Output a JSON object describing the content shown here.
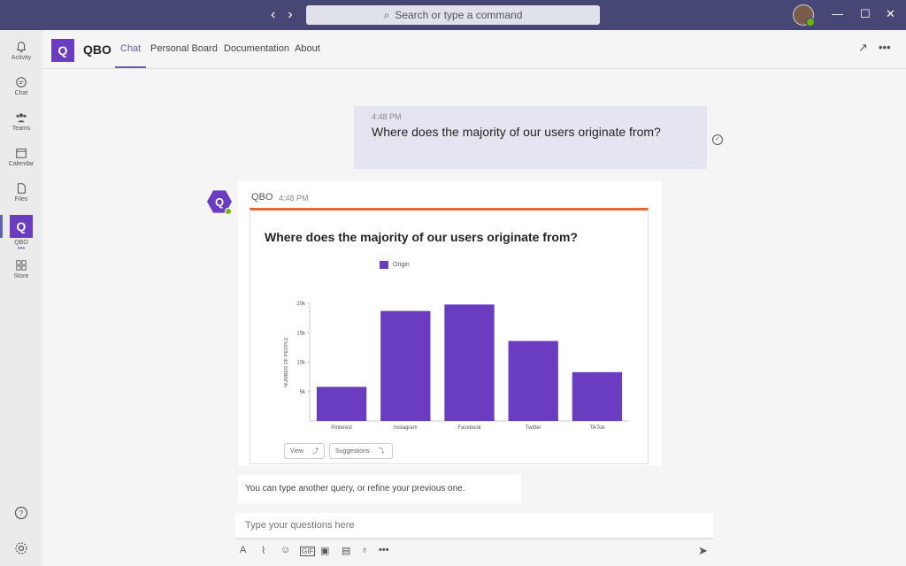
{
  "titlebar": {
    "search_placeholder": "Search or type a command"
  },
  "rail": {
    "items": [
      {
        "label": "Activity"
      },
      {
        "label": "Chat"
      },
      {
        "label": "Teams"
      },
      {
        "label": "Calendar"
      },
      {
        "label": "Files"
      },
      {
        "label": "QBO"
      },
      {
        "label": "Store"
      }
    ]
  },
  "header": {
    "app_name": "QBO",
    "tabs": [
      {
        "label": "Chat"
      },
      {
        "label": "Personal Board"
      },
      {
        "label": "Documentation"
      },
      {
        "label": "About"
      }
    ]
  },
  "messages": {
    "user": {
      "time": "4:48 PM",
      "text": "Where does the majority of our users originate from?"
    },
    "bot": {
      "name": "QBO",
      "time": "4:48 PM"
    }
  },
  "card": {
    "title": "Where does the majority of our users originate from?",
    "view_label": "View",
    "suggestions_label": "Suggestions"
  },
  "chart_data": {
    "type": "bar",
    "title": "Where does the majority of our users originate from?",
    "categories": [
      "Pinterest",
      "Instagram",
      "Facebook",
      "Twitter",
      "TikTok"
    ],
    "series": [
      {
        "name": "Origin",
        "values": [
          5800,
          18700,
          19800,
          13600,
          8300
        ],
        "color": "#6a3cc0"
      }
    ],
    "ylabel": "NUMBER OF PEOPLE",
    "yticks": [
      "5k",
      "10k",
      "15k",
      "20k"
    ],
    "ytick_values": [
      5000,
      10000,
      15000,
      20000
    ],
    "ylim": [
      0,
      20000
    ],
    "legend": "top",
    "grid": false
  },
  "hint_text": "You can type another query, or refine your previous one.",
  "compose": {
    "placeholder": "Type your questions here"
  },
  "colors": {
    "accent": "#6264a7",
    "bar": "#6a3cc0",
    "titlebar": "#464775"
  }
}
